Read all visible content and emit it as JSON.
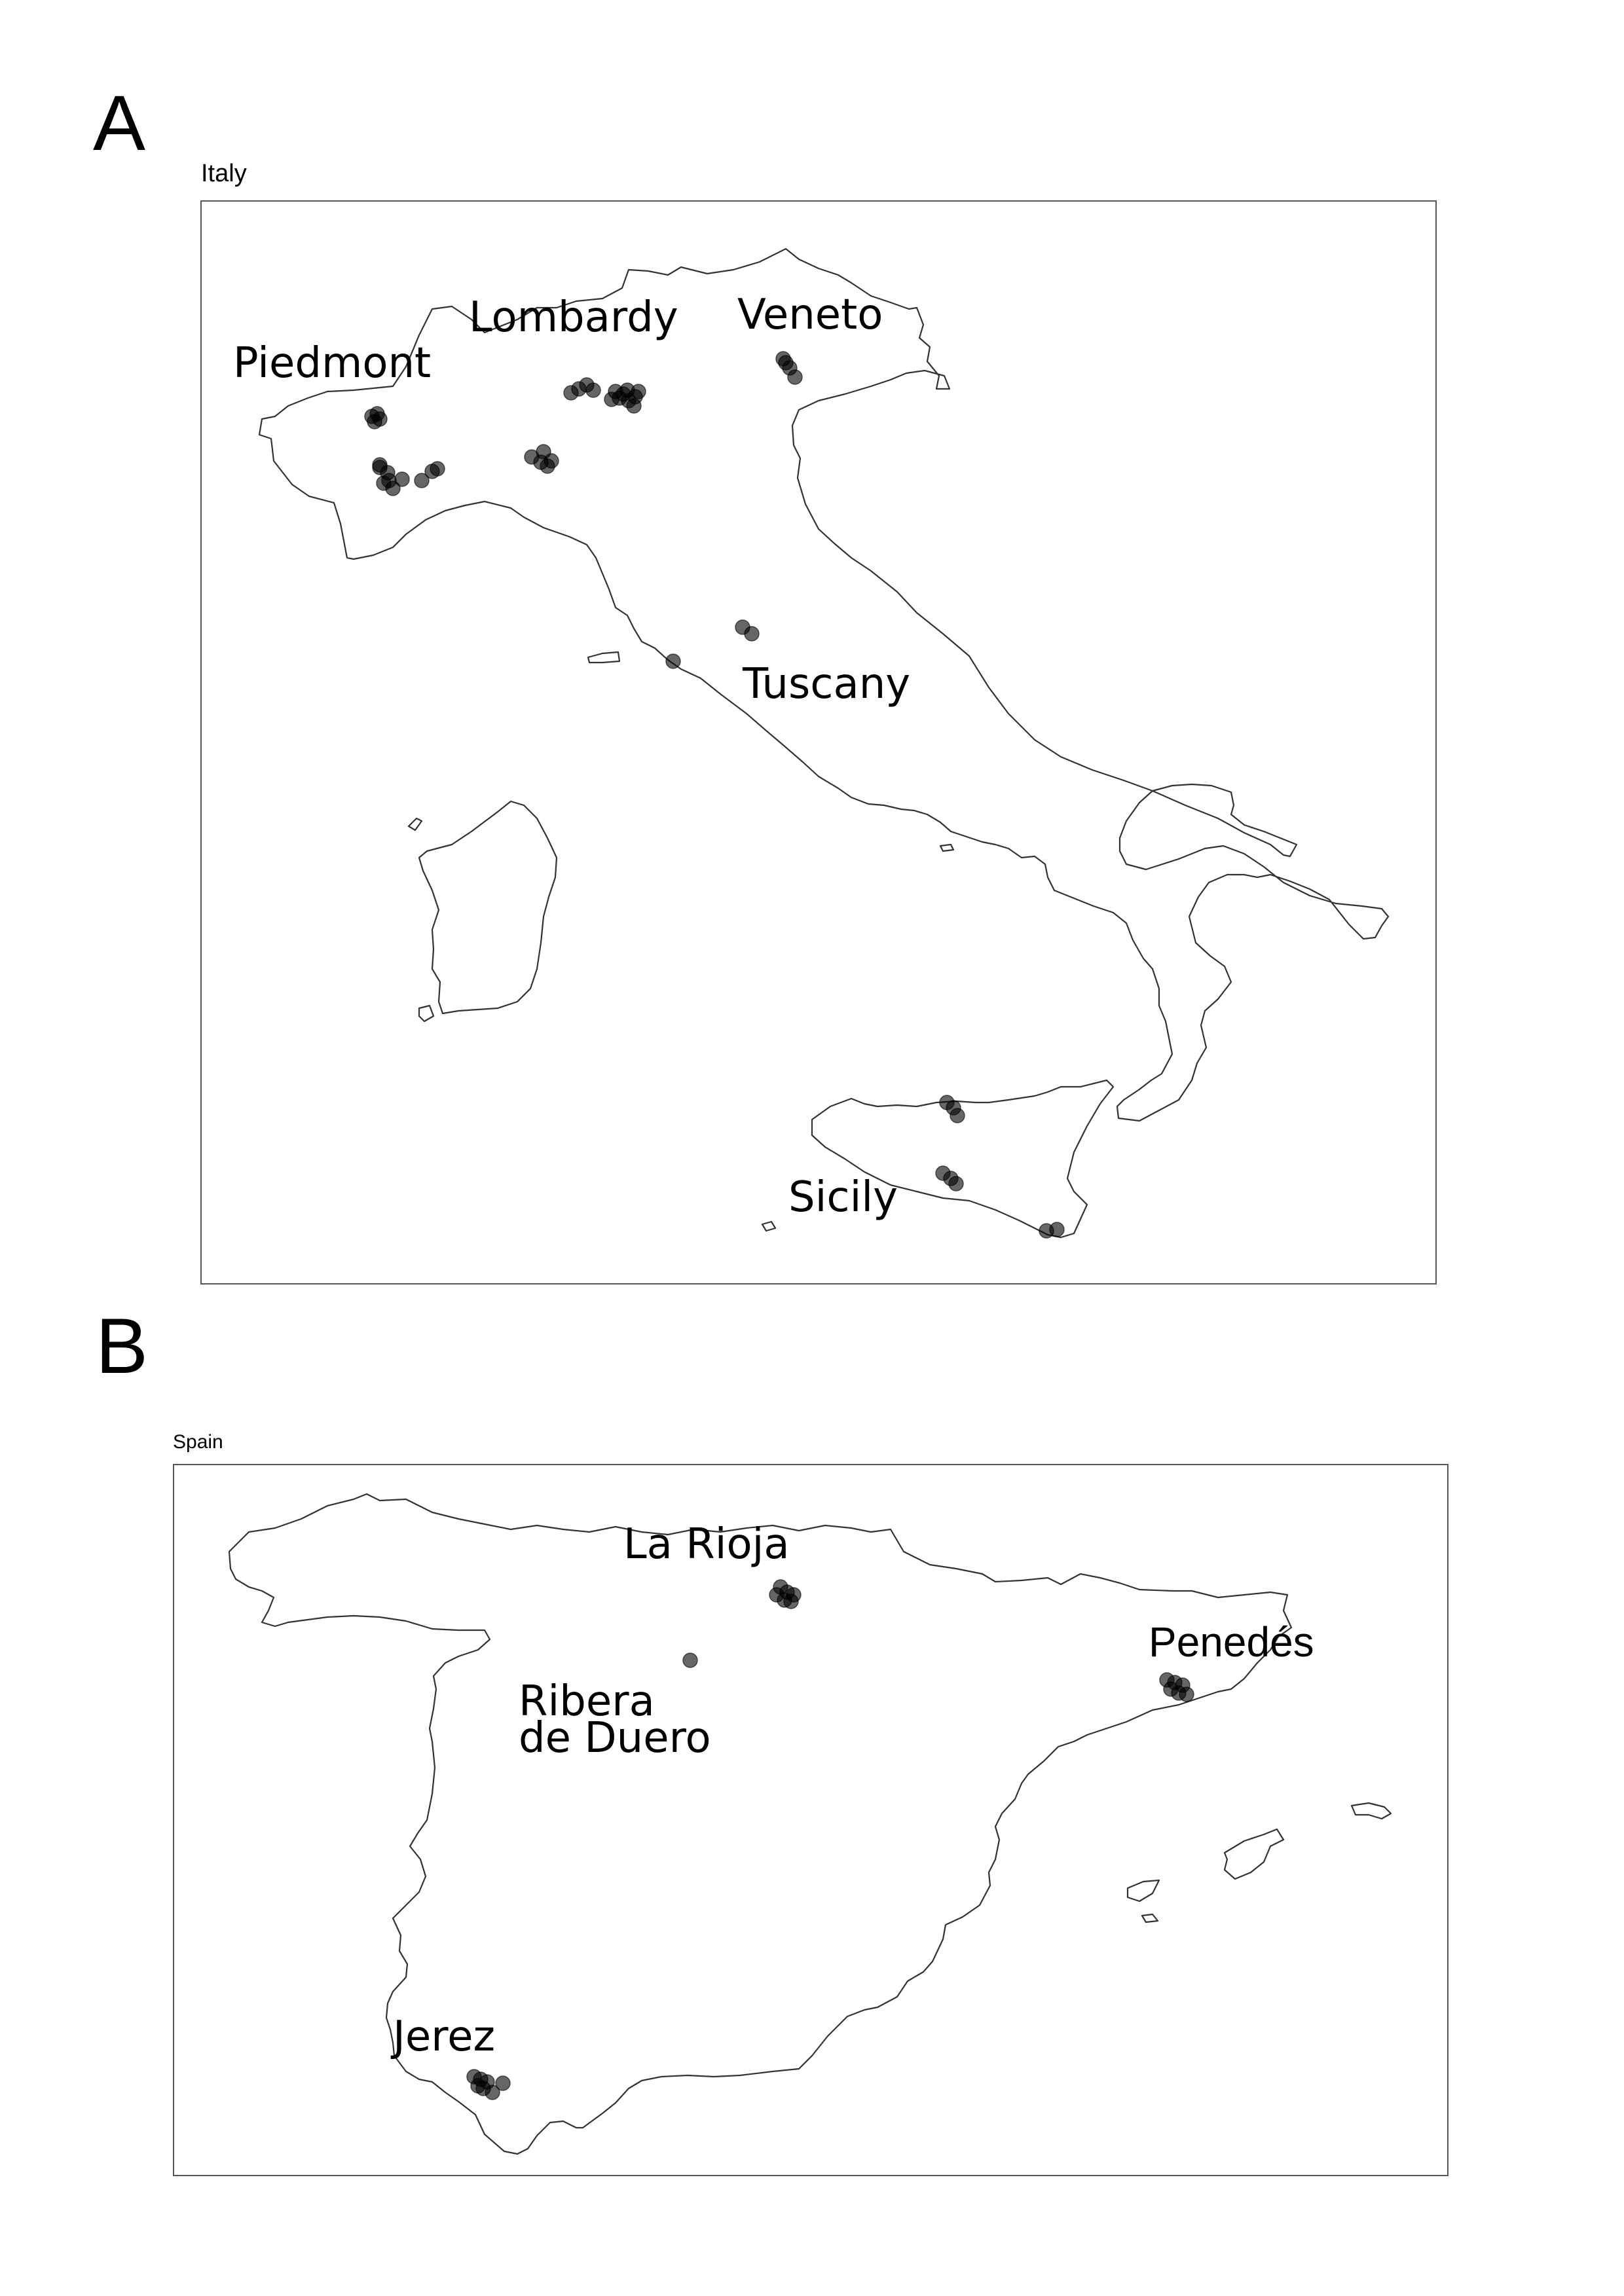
{
  "figure": {
    "panel_a": {
      "letter": "A",
      "title": "Italy",
      "regions": [
        {
          "label": "Piedmont"
        },
        {
          "label": "Lombardy"
        },
        {
          "label": "Veneto"
        },
        {
          "label": "Tuscany"
        },
        {
          "label": "Sicily"
        }
      ]
    },
    "panel_b": {
      "letter": "B",
      "title": "Spain",
      "regions": [
        {
          "label": "La Rioja"
        },
        {
          "label": "Penedés"
        },
        {
          "label": "Ribera",
          "label2": "de Duero"
        },
        {
          "label": "Jerez"
        }
      ]
    }
  },
  "style": {
    "marker_color": "#000000",
    "marker_opacity": 0.6,
    "coastline_color": "#333333"
  }
}
